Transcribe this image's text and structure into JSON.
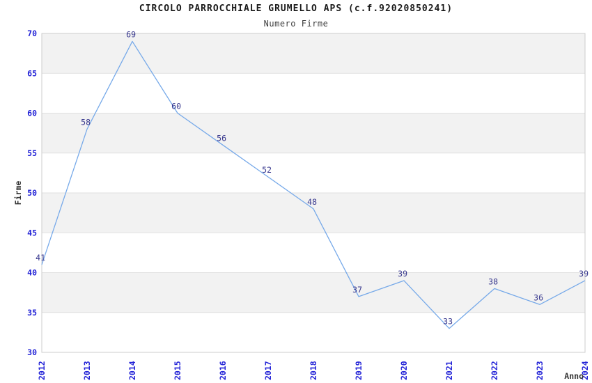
{
  "chart_data": {
    "type": "line",
    "title": "CIRCOLO PARROCCHIALE GRUMELLO APS (c.f.92020850241)",
    "subtitle": "Numero Firme",
    "xlabel": "Anno",
    "ylabel": "Firme",
    "categories": [
      "2012",
      "2013",
      "2014",
      "2015",
      "2016",
      "2017",
      "2018",
      "2019",
      "2020",
      "2021",
      "2022",
      "2023",
      "2024"
    ],
    "values": [
      41,
      58,
      69,
      60,
      56,
      52,
      48,
      37,
      39,
      33,
      38,
      36,
      39
    ],
    "data_labels_visible": true,
    "ylim": [
      30,
      70
    ],
    "yticks": [
      30,
      35,
      40,
      45,
      50,
      55,
      60,
      65,
      70
    ],
    "xtick_rotation_degrees": 90,
    "grid": "horizontal gridlines with alternating gray bands",
    "legend": "none",
    "colors": {
      "line": "#76a9e9",
      "tick_label": "#2323d7",
      "data_label": "#38388e",
      "band_fill": "#f2f2f2",
      "gridline": "#e0e0e0",
      "plot_border": "#cccccc",
      "axis_label": "#333333",
      "background": "#ffffff"
    }
  }
}
